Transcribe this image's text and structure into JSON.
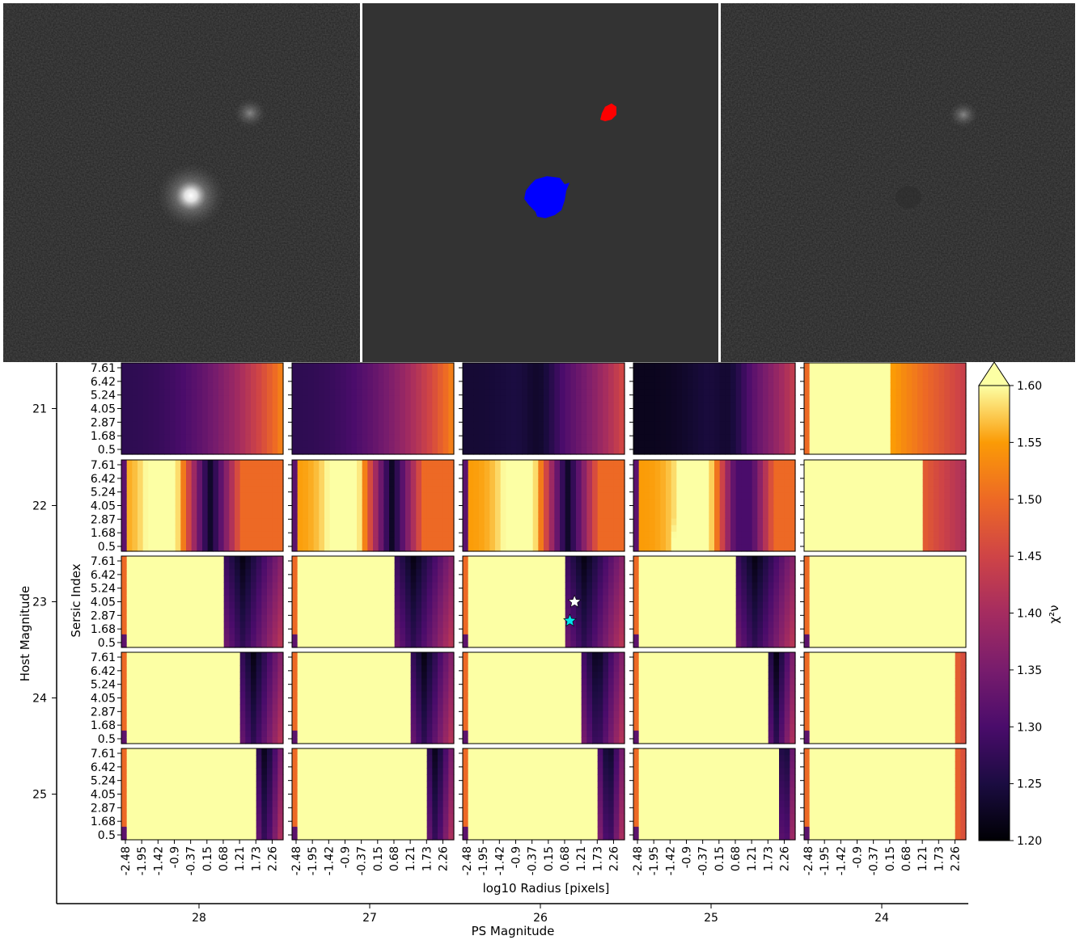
{
  "chart_data": {
    "type": "heatmap",
    "grid_layout": "5x5",
    "row_axis_label": "Host Magnitude",
    "row_values": [
      "21",
      "22",
      "23",
      "24",
      "25"
    ],
    "column_axis_label": "PS Magnitude",
    "column_values": [
      "28",
      "27",
      "26",
      "25",
      "24"
    ],
    "xlabel": "log10 Radius [pixels]",
    "ylabel": "Sersic Index",
    "x_tick_labels": [
      "-2.48",
      "-1.95",
      "-1.42",
      "-0.9",
      "-0.37",
      "0.15",
      "0.68",
      "1.21",
      "1.73",
      "2.26"
    ],
    "y_tick_labels": [
      "7.61",
      "6.42",
      "5.24",
      "4.05",
      "2.87",
      "1.68",
      "0.5"
    ],
    "colorbar": {
      "label": "χ²ν",
      "range": [
        1.2,
        1.6
      ],
      "extend": "max",
      "colormap": "inferno",
      "tick_labels": [
        "1.60",
        "1.55",
        "1.50",
        "1.45",
        "1.40",
        "1.35",
        "1.30",
        "1.25",
        "1.20"
      ]
    },
    "markers": [
      {
        "panel_row": "23",
        "panel_col": "26",
        "symbol": "star",
        "color": "#ffffff",
        "log10_radius": 1.0,
        "sersic_index": 4.05
      },
      {
        "panel_row": "23",
        "panel_col": "26",
        "symbol": "star",
        "color": "#00e5ee",
        "log10_radius": 0.85,
        "sersic_index": 2.4
      }
    ],
    "segmentation_colors": {
      "background": "#333333",
      "host": "#0000ff",
      "companion": "#ff0000"
    }
  }
}
